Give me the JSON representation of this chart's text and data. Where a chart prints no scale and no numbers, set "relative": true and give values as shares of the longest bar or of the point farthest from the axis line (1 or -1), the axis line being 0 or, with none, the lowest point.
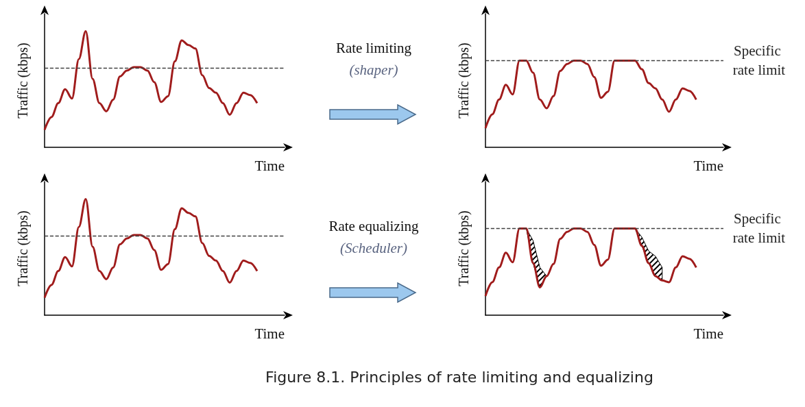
{
  "chart_data": [
    {
      "type": "line",
      "relative": true,
      "xlabel": "Time",
      "ylabel": "Traffic (kbps)",
      "marker": "none",
      "categories": [
        null,
        null,
        null,
        null,
        null,
        null,
        null,
        null,
        null,
        null,
        null,
        null,
        null,
        null,
        null,
        null,
        null,
        null,
        null,
        null,
        null,
        null,
        null,
        null,
        null,
        null,
        null,
        null,
        null,
        null,
        null,
        null
      ],
      "series": [
        {
          "color": "#a01c1c",
          "values": [
            0.15,
            0.26,
            0.38,
            0.5,
            0.42,
            0.76,
            1,
            0.59,
            0.38,
            0.31,
            0.41,
            0.61,
            0.66,
            0.69,
            0.69,
            0.66,
            0.56,
            0.39,
            0.44,
            0.74,
            0.92,
            0.88,
            0.85,
            0.62,
            0.51,
            0.47,
            0.38,
            0.28,
            0.38,
            0.47,
            0.45,
            0.38
          ]
        }
      ],
      "ref_lines": [
        {
          "axis": "y",
          "value": 0.68,
          "line_style": "dashed",
          "color": "#404040"
        }
      ]
    },
    {
      "type": "line",
      "relative": true,
      "xlabel": "Time",
      "ylabel": "Traffic (kbps)",
      "marker": "none",
      "annotations": [
        "Rate limiting",
        "(shaper)"
      ],
      "categories": [
        null,
        null,
        null,
        null,
        null,
        null,
        null,
        null,
        null,
        null,
        null,
        null,
        null,
        null,
        null,
        null,
        null,
        null,
        null,
        null,
        null,
        null,
        null,
        null,
        null,
        null,
        null,
        null,
        null,
        null,
        null,
        null
      ],
      "series": [
        {
          "color": "#a01c1c",
          "values": [
            0.22,
            0.38,
            0.55,
            0.72,
            0.61,
            1,
            1,
            0.86,
            0.55,
            0.45,
            0.59,
            0.88,
            0.96,
            1,
            1,
            0.96,
            0.81,
            0.57,
            0.64,
            1,
            1,
            1,
            1,
            0.9,
            0.74,
            0.68,
            0.55,
            0.41,
            0.55,
            0.68,
            0.65,
            0.55
          ]
        }
      ],
      "ref_lines": [
        {
          "axis": "y",
          "value": 1,
          "label": "Specific rate limit",
          "line_style": "dashed",
          "color": "#404040"
        }
      ]
    },
    {
      "type": "line",
      "relative": true,
      "xlabel": "Time",
      "ylabel": "Traffic (kbps)",
      "marker": "none",
      "categories": [
        null,
        null,
        null,
        null,
        null,
        null,
        null,
        null,
        null,
        null,
        null,
        null,
        null,
        null,
        null,
        null,
        null,
        null,
        null,
        null,
        null,
        null,
        null,
        null,
        null,
        null,
        null,
        null,
        null,
        null,
        null,
        null
      ],
      "series": [
        {
          "color": "#a01c1c",
          "values": [
            0.15,
            0.26,
            0.38,
            0.5,
            0.42,
            0.76,
            1,
            0.59,
            0.38,
            0.31,
            0.41,
            0.61,
            0.66,
            0.69,
            0.69,
            0.66,
            0.56,
            0.39,
            0.44,
            0.74,
            0.92,
            0.88,
            0.85,
            0.62,
            0.51,
            0.47,
            0.38,
            0.28,
            0.38,
            0.47,
            0.45,
            0.38
          ]
        }
      ],
      "ref_lines": [
        {
          "axis": "y",
          "value": 0.68,
          "line_style": "dashed",
          "color": "#404040"
        }
      ]
    },
    {
      "type": "line",
      "relative": true,
      "xlabel": "Time",
      "ylabel": "Traffic (kbps)",
      "marker": "none",
      "annotations": [
        "Rate equalizing",
        "(Scheduler)",
        "Figure 8.1. Principles of rate limiting and equalizing"
      ],
      "categories": [
        null,
        null,
        null,
        null,
        null,
        null,
        null,
        null,
        null,
        null,
        null,
        null,
        null,
        null,
        null,
        null,
        null,
        null,
        null,
        null,
        null,
        null,
        null,
        null,
        null,
        null,
        null,
        null,
        null,
        null,
        null,
        null
      ],
      "series": [
        {
          "color": "#a01c1c",
          "values": [
            0.22,
            0.38,
            0.55,
            0.72,
            0.61,
            1,
            1,
            0.6,
            0.32,
            0.45,
            0.59,
            0.88,
            0.96,
            1,
            1,
            0.96,
            0.81,
            0.57,
            0.64,
            1,
            1,
            1,
            1,
            0.8,
            0.6,
            0.45,
            0.4,
            0.38,
            0.55,
            0.68,
            0.65,
            0.55
          ],
          "lower": [
            null,
            null,
            null,
            null,
            null,
            null,
            1,
            0.6,
            0.32,
            0.45,
            null,
            null,
            null,
            null,
            null,
            null,
            null,
            null,
            null,
            null,
            null,
            null,
            1,
            0.8,
            0.6,
            0.45,
            0.4,
            null,
            null,
            null,
            null,
            null
          ],
          "upper": [
            null,
            null,
            null,
            null,
            null,
            null,
            1,
            0.86,
            0.55,
            0.45,
            null,
            null,
            null,
            null,
            null,
            null,
            null,
            null,
            null,
            null,
            null,
            null,
            1,
            0.9,
            0.74,
            0.68,
            0.55,
            null,
            null,
            null,
            null,
            null
          ]
        }
      ],
      "ref_lines": [
        {
          "axis": "y",
          "value": 1,
          "label": "Specific rate limit",
          "line_style": "dashed",
          "color": "#404040"
        }
      ]
    }
  ]
}
